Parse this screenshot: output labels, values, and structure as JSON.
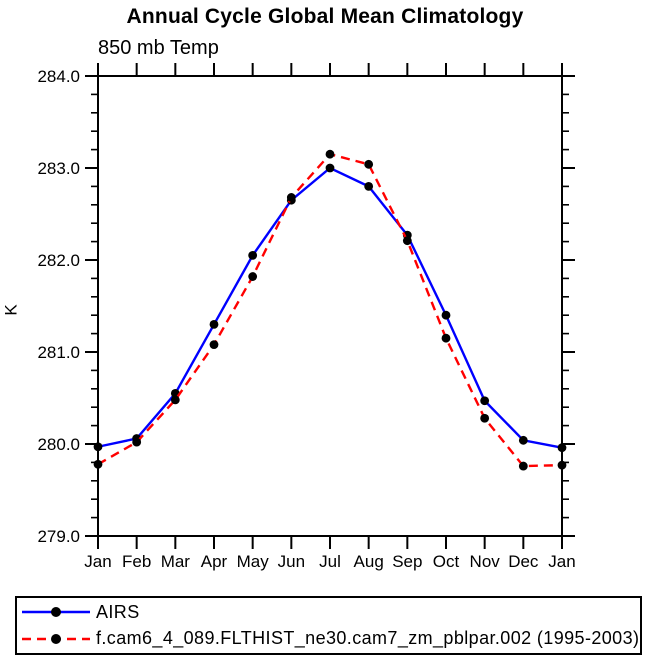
{
  "header": {
    "title": "Annual Cycle Global Mean Climatology"
  },
  "chart_data": {
    "type": "line",
    "subtitle": "850 mb Temp",
    "ylabel": "K",
    "xlabel": "",
    "ylim": [
      279.0,
      284.0
    ],
    "ytick_step": 1.0,
    "yminor_step": 0.2,
    "ytick_labels": [
      "279.0",
      "280.0",
      "281.0",
      "282.0",
      "283.0",
      "284.0"
    ],
    "categories": [
      "Jan",
      "Feb",
      "Mar",
      "Apr",
      "May",
      "Jun",
      "Jul",
      "Aug",
      "Sep",
      "Oct",
      "Nov",
      "Dec",
      "Jan"
    ],
    "series": [
      {
        "name": "AIRS",
        "color": "#0000ff",
        "line_style": "solid",
        "marker": "filled-circle",
        "marker_color": "#000000",
        "values": [
          279.97,
          280.06,
          280.55,
          281.3,
          282.05,
          282.65,
          283.0,
          282.8,
          282.27,
          281.4,
          280.47,
          280.04,
          279.96
        ]
      },
      {
        "name": "f.cam6_4_089.FLTHIST_ne30.cam7_zm_pblpar.002 (1995-2003)",
        "color": "#ff0000",
        "line_style": "dashed",
        "marker": "filled-circle",
        "marker_color": "#000000",
        "values": [
          279.78,
          280.02,
          280.48,
          281.08,
          281.82,
          282.68,
          283.15,
          283.04,
          282.21,
          281.15,
          280.28,
          279.76,
          279.77
        ]
      }
    ],
    "grid": false,
    "legend_position": "bottom-box",
    "frame_color": "#000000",
    "background_color": "#ffffff"
  }
}
